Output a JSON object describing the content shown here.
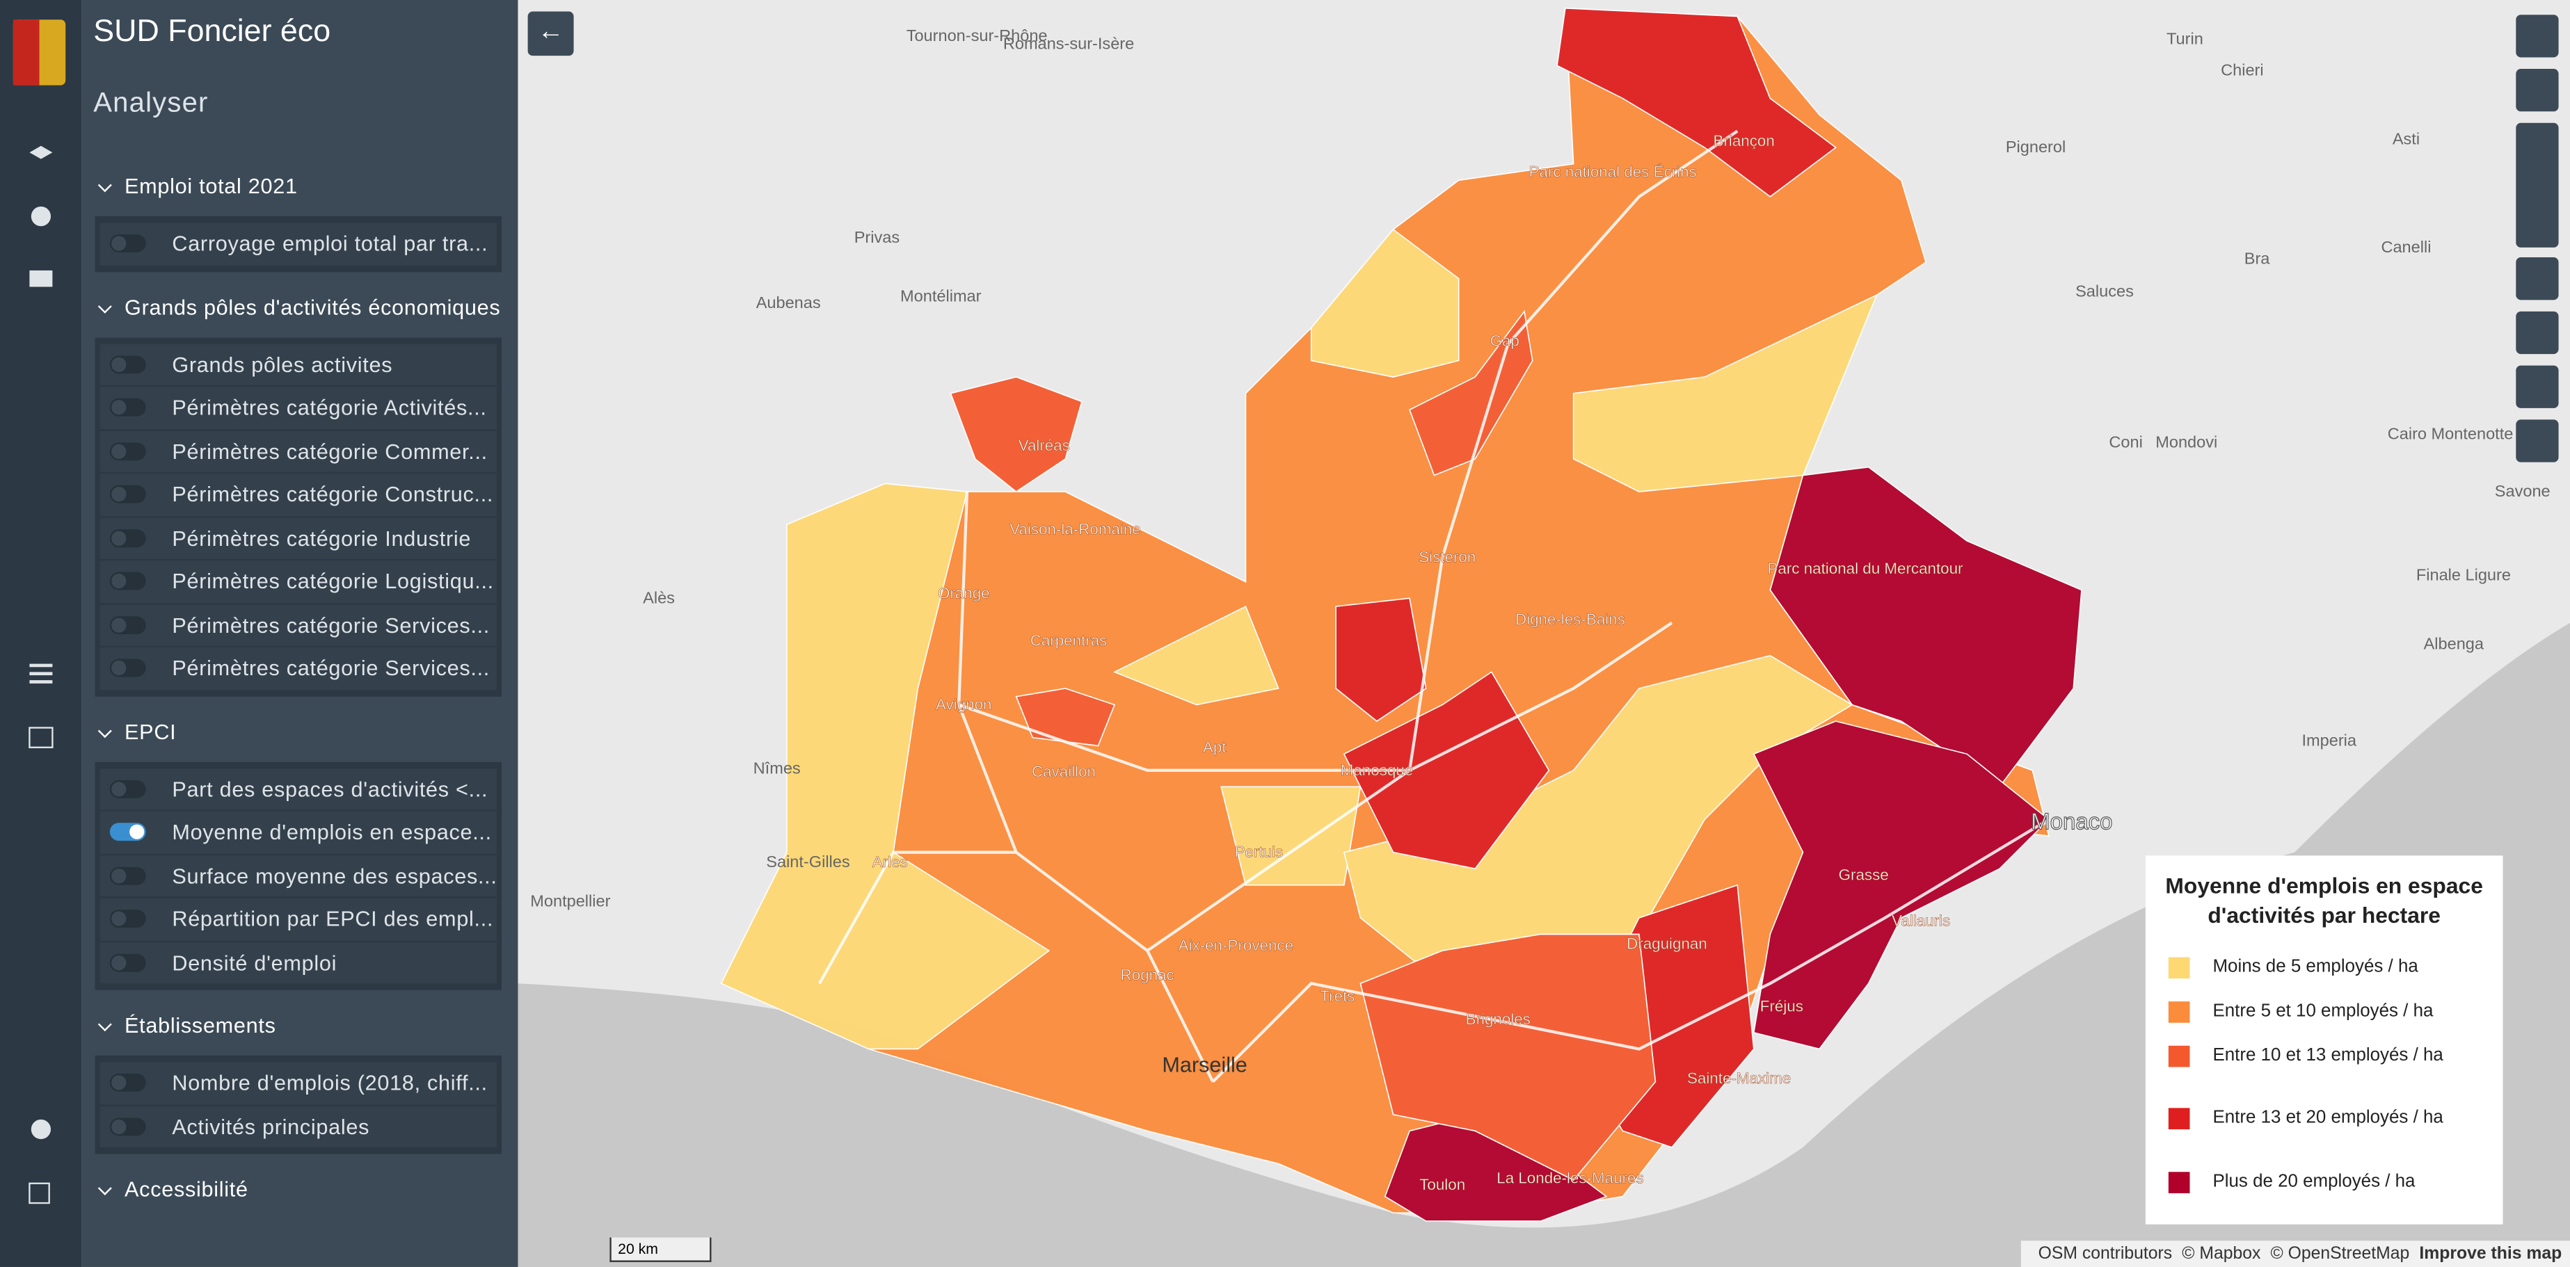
{
  "app": {
    "title": "SUD Foncier éco",
    "section": "Analyser"
  },
  "layers": [
    {
      "title": "Emploi total 2021",
      "items": [
        {
          "label": "Carroyage emploi total par tra...",
          "checked": false
        }
      ]
    },
    {
      "title": "Grands pôles d'activités économiques",
      "items": [
        {
          "label": "Grands pôles activites",
          "checked": false
        },
        {
          "label": "Périmètres catégorie Activités...",
          "checked": false
        },
        {
          "label": "Périmètres catégorie Commer...",
          "checked": false
        },
        {
          "label": "Périmètres catégorie Construc...",
          "checked": false
        },
        {
          "label": "Périmètres catégorie Industrie",
          "checked": false
        },
        {
          "label": "Périmètres catégorie Logistiqu...",
          "checked": false
        },
        {
          "label": "Périmètres catégorie Services...",
          "checked": false
        },
        {
          "label": "Périmètres catégorie Services...",
          "checked": false
        }
      ]
    },
    {
      "title": "EPCI",
      "items": [
        {
          "label": "Part des espaces d'activités <...",
          "checked": false
        },
        {
          "label": "Moyenne d'emplois en espace...",
          "checked": true
        },
        {
          "label": "Surface moyenne des espaces...",
          "checked": false
        },
        {
          "label": "Répartition par EPCI des empl...",
          "checked": false
        },
        {
          "label": "Densité d'emploi",
          "checked": false
        }
      ]
    },
    {
      "title": "Établissements",
      "items": [
        {
          "label": "Nombre d'emplois (2018, chiff...",
          "checked": false
        },
        {
          "label": "Activités principales",
          "checked": false
        }
      ]
    },
    {
      "title": "Accessibilité",
      "items": []
    }
  ],
  "legend": {
    "title": "Moyenne d'emplois en espace d'activités par hectare",
    "items": [
      {
        "label": "Moins de 5 employés / ha",
        "color": "#fed873"
      },
      {
        "label": "Entre 5 et 10 employés / ha",
        "color": "#fb8c3b"
      },
      {
        "label": "Entre 10 et 13 employés / ha",
        "color": "#f4592e"
      },
      {
        "label": "Entre 13 et 20 employés / ha",
        "color": "#df1f1f"
      },
      {
        "label": "Plus de 20 employés / ha",
        "color": "#b1002a"
      }
    ]
  },
  "places": [
    "Turin",
    "Asti",
    "Pignerol",
    "Chieri",
    "Bra",
    "Saluces",
    "Canelli",
    "Coni",
    "Mondovi",
    "Savone",
    "Imperia",
    "Albenga",
    "Finale Ligure",
    "Cairo Montenotte",
    "Monaco",
    "Nîmes",
    "Montpellier",
    "Alès",
    "Aubenas",
    "Montélimar",
    "Privas",
    "Tournon-sur-Rhône",
    "Romans-sur-Isère",
    "Avignon",
    "Orange",
    "Carpentras",
    "Cavaillon",
    "Apt",
    "Arles",
    "Saint-Gilles",
    "Aix-en-Provence",
    "Marseille",
    "Toulon",
    "Manosque",
    "Sisteron",
    "Digne-les-Bains",
    "Gap",
    "Briançon",
    "Valréas",
    "Vaison-la-Romaine",
    "Pertuis",
    "Rognac",
    "Trets",
    "Brignoles",
    "Draguignan",
    "Fréjus",
    "Grasse",
    "Vallauris",
    "Sainte-Maxime",
    "La Londe-les-Maures",
    "Parc national des Écrins",
    "Parc national du Mercantour"
  ],
  "map": {
    "scale": "20 km",
    "attribution": [
      "OSM contributors",
      "© Mapbox",
      "© OpenStreetMap",
      "Improve this map"
    ]
  }
}
